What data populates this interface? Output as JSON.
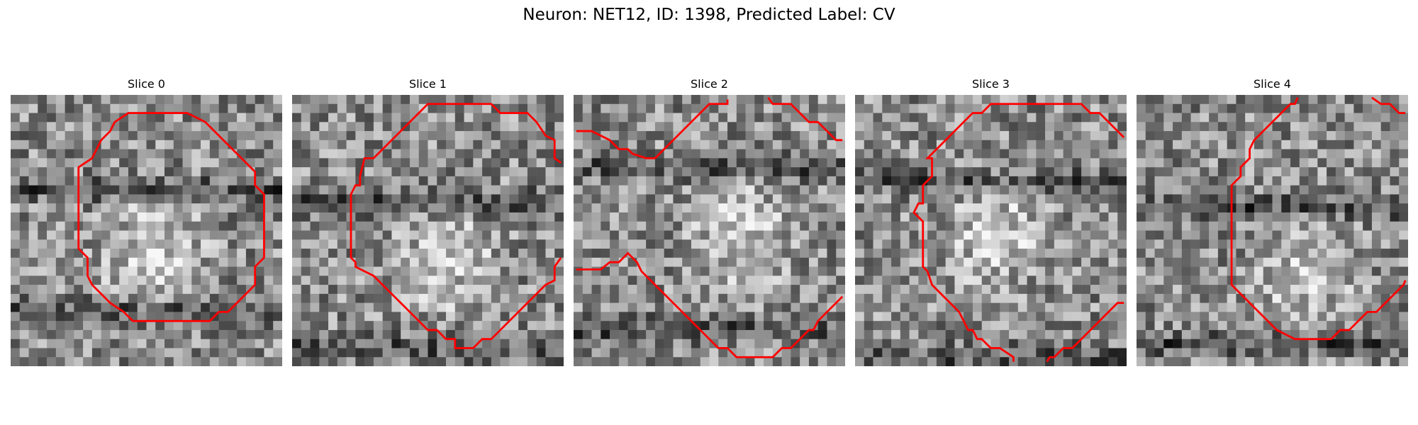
{
  "figure": {
    "title": "Neuron: NET12, ID: 1398, Predicted Label: CV"
  },
  "slices": [
    {
      "title": "Slice 0",
      "seed": 11,
      "dark_rows": [
        0.33,
        0.78
      ],
      "bright_center": [
        0.5,
        0.55
      ]
    },
    {
      "title": "Slice 1",
      "seed": 23,
      "dark_rows": [
        0.38,
        0.92
      ],
      "bright_center": [
        0.55,
        0.6
      ]
    },
    {
      "title": "Slice 2",
      "seed": 37,
      "dark_rows": [
        0.25,
        0.85
      ],
      "bright_center": [
        0.6,
        0.5
      ]
    },
    {
      "title": "Slice 3",
      "seed": 41,
      "dark_rows": [
        0.3,
        0.95
      ],
      "bright_center": [
        0.5,
        0.5
      ]
    },
    {
      "title": "Slice 4",
      "seed": 53,
      "dark_rows": [
        0.4,
        0.9
      ],
      "bright_center": [
        0.6,
        0.65
      ]
    }
  ],
  "style": {
    "contour_color": "#ff0000",
    "colormap": "grayscale"
  }
}
